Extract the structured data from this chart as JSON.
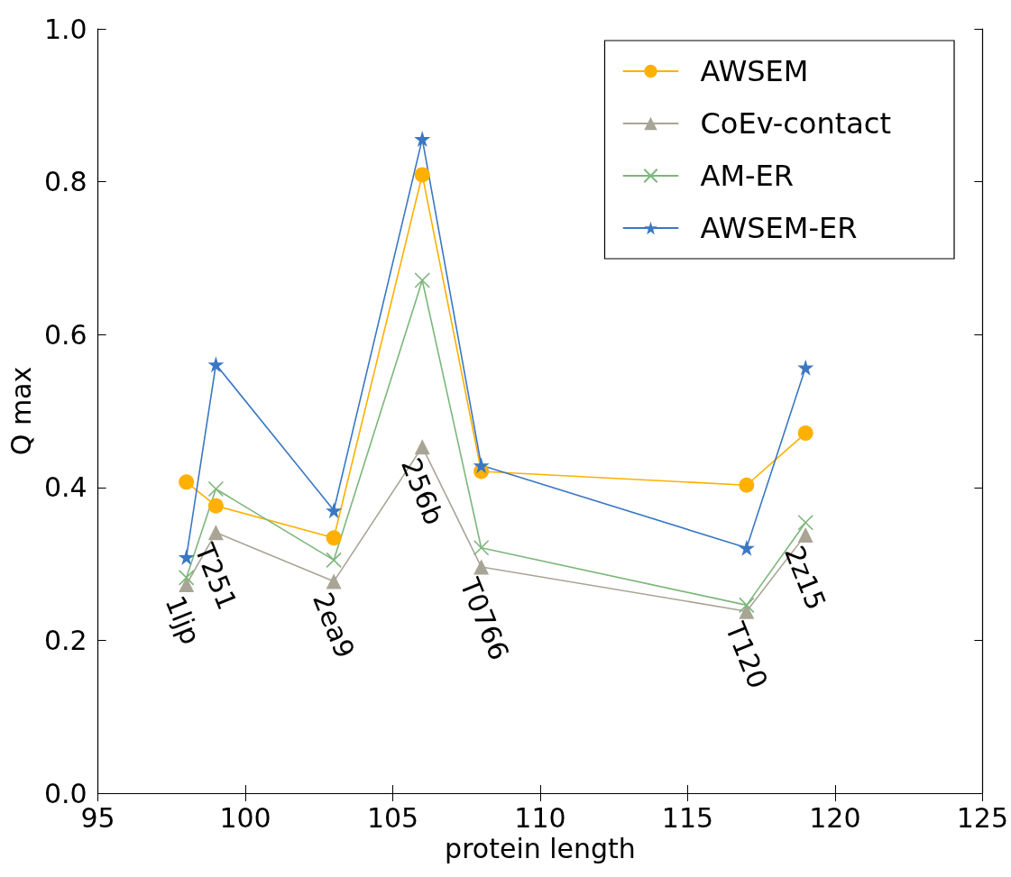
{
  "chart_data": {
    "type": "line",
    "xlabel": "protein length",
    "ylabel": "Q max",
    "x": [
      98,
      99,
      103,
      106,
      108,
      117,
      119
    ],
    "xlim": [
      95,
      125
    ],
    "xticks": [
      95,
      100,
      105,
      110,
      115,
      120,
      125
    ],
    "ylim": [
      0,
      1
    ],
    "yticks": [
      {
        "value": 0,
        "label": "0.0"
      },
      {
        "value": 0.2,
        "label": "0.2"
      },
      {
        "value": 0.4,
        "label": "0.4"
      },
      {
        "value": 0.6,
        "label": "0.6"
      },
      {
        "value": 0.8,
        "label": "0.8"
      },
      {
        "value": 1,
        "label": "1.0"
      }
    ],
    "grid": false,
    "legend": "top right",
    "line_style": "solid",
    "series": [
      {
        "name": "AWSEM",
        "color": "#ffb000",
        "marker": "circle",
        "values": [
          0.407,
          0.376,
          0.334,
          0.809,
          0.421,
          0.403,
          0.471
        ]
      },
      {
        "name": "CoEv-contact",
        "color": "#a8a596",
        "marker": "triangle",
        "values": [
          0.273,
          0.341,
          0.277,
          0.453,
          0.296,
          0.238,
          0.338
        ]
      },
      {
        "name": "AM-ER",
        "color": "#7cb77a",
        "marker": "cross",
        "values": [
          0.282,
          0.398,
          0.305,
          0.671,
          0.321,
          0.246,
          0.354
        ]
      },
      {
        "name": "AWSEM-ER",
        "color": "#3a78c3",
        "marker": "star",
        "values": [
          0.309,
          0.561,
          0.37,
          0.856,
          0.429,
          0.321,
          0.557
        ]
      }
    ],
    "annotations": [
      {
        "text": "1ljp",
        "x": 98,
        "y": 0.273
      },
      {
        "text": "T251",
        "x": 99,
        "y": 0.341
      },
      {
        "text": "2ea9",
        "x": 103,
        "y": 0.277
      },
      {
        "text": "256b",
        "x": 106,
        "y": 0.453
      },
      {
        "text": "T0766",
        "x": 108,
        "y": 0.296
      },
      {
        "text": "T120",
        "x": 117,
        "y": 0.238
      },
      {
        "text": "2z15",
        "x": 119,
        "y": 0.338
      }
    ]
  }
}
